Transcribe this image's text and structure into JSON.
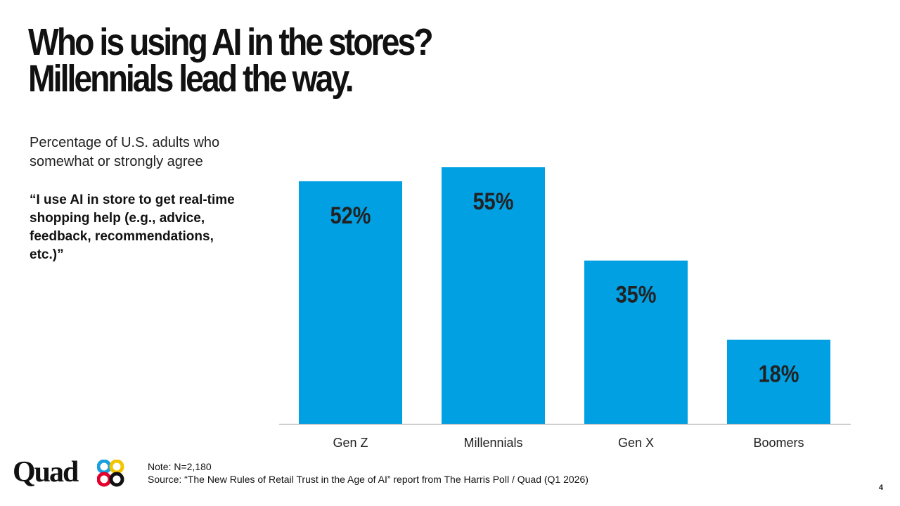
{
  "title_line1": "Who is using AI in the stores?",
  "title_line2": "Millennials lead the way.",
  "subtitle": "Percentage of U.S. adults who somewhat or strongly agree",
  "quote": "“I use AI in store to get real-time shopping help (e.g., advice, feedback, recommendations, etc.)”",
  "note": "Note: N=2,180",
  "source": "Source: “The New Rules of Retail Trust in the Age of AI” report from The Harris Poll / Quad (Q1 2026)",
  "logo_text": "Quad",
  "page_number": "4",
  "colors": {
    "bar": "#00a0e3",
    "label": "#222222"
  },
  "chart_data": {
    "type": "bar",
    "categories": [
      "Gen Z",
      "Millennials",
      "Gen X",
      "Boomers"
    ],
    "values": [
      52,
      55,
      35,
      18
    ],
    "data_labels": [
      "52%",
      "55%",
      "35%",
      "18%"
    ],
    "unit": "%",
    "grid": false,
    "legend": "none"
  }
}
